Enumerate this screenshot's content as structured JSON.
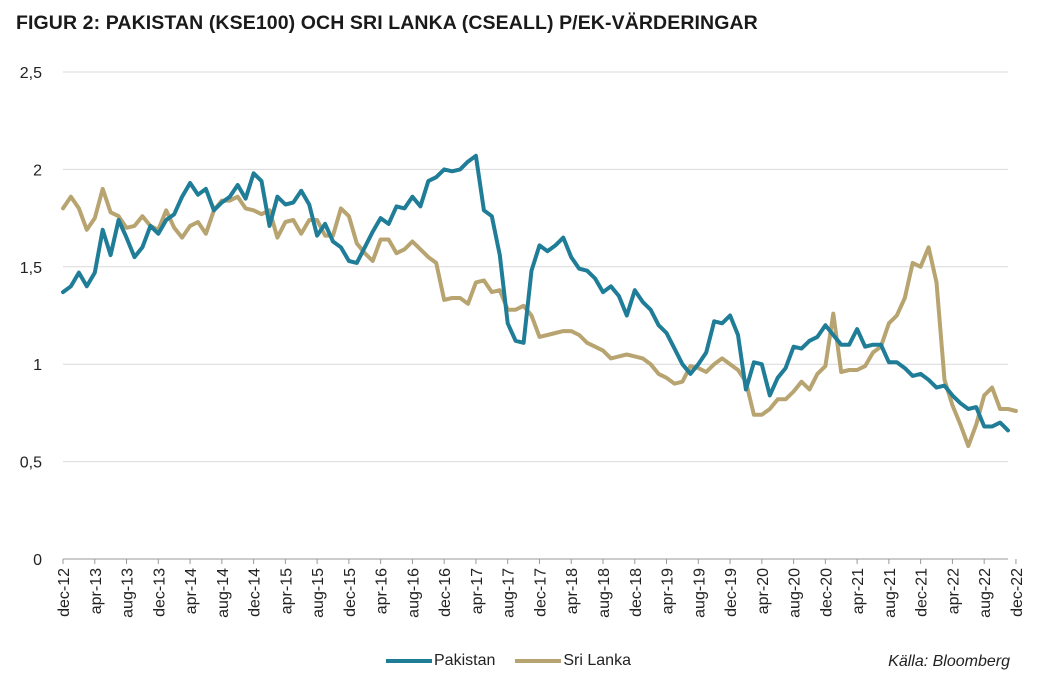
{
  "title": "FIGUR 2: PAKISTAN (KSE100) OCH SRI LANKA (CSEALL) P/EK-VÄRDERINGAR",
  "source": "Källa: Bloomberg",
  "colors": {
    "pakistan": "#1f7d98",
    "sri_lanka": "#b7a470",
    "grid": "#d9d9d9",
    "axis": "#999999"
  },
  "chart_data": {
    "type": "line",
    "title": "FIGUR 2: PAKISTAN (KSE100) OCH SRI LANKA (CSEALL) P/EK-VÄRDERINGAR",
    "xlabel": "",
    "ylabel": "",
    "ylim": [
      0,
      2.5
    ],
    "yticks": [
      "0",
      "0,5",
      "1",
      "1,5",
      "2",
      "2,5"
    ],
    "ytick_values": [
      0,
      0.5,
      1,
      1.5,
      2,
      2.5
    ],
    "grid": true,
    "legend": "bottom-center",
    "x_labels": [
      "dec-12",
      "apr-13",
      "aug-13",
      "dec-13",
      "apr-14",
      "aug-14",
      "dec-14",
      "apr-15",
      "aug-15",
      "dec-15",
      "apr-16",
      "aug-16",
      "dec-16",
      "apr-17",
      "aug-17",
      "dec-17",
      "apr-18",
      "aug-18",
      "dec-18",
      "apr-19",
      "aug-19",
      "dec-19",
      "apr-20",
      "aug-20",
      "dec-20",
      "apr-21",
      "aug-21",
      "dec-21",
      "apr-22",
      "aug-22",
      "dec-22"
    ],
    "x_start": "dec-12",
    "x_step": "1 month",
    "series": [
      {
        "name": "Pakistan",
        "values": [
          1.37,
          1.4,
          1.47,
          1.4,
          1.47,
          1.69,
          1.56,
          1.74,
          1.65,
          1.55,
          1.6,
          1.71,
          1.67,
          1.74,
          1.77,
          1.86,
          1.93,
          1.87,
          1.9,
          1.79,
          1.83,
          1.86,
          1.92,
          1.85,
          1.98,
          1.94,
          1.71,
          1.86,
          1.82,
          1.83,
          1.89,
          1.82,
          1.66,
          1.72,
          1.63,
          1.6,
          1.53,
          1.52,
          1.6,
          1.68,
          1.75,
          1.72,
          1.81,
          1.8,
          1.86,
          1.81,
          1.94,
          1.96,
          2.0,
          1.99,
          2.0,
          2.04,
          2.07,
          1.79,
          1.76,
          1.56,
          1.21,
          1.12,
          1.11,
          1.48,
          1.61,
          1.58,
          1.61,
          1.65,
          1.55,
          1.49,
          1.48,
          1.44,
          1.37,
          1.4,
          1.35,
          1.25,
          1.38,
          1.32,
          1.28,
          1.2,
          1.16,
          1.08,
          1.0,
          0.95,
          1.0,
          1.06,
          1.22,
          1.21,
          1.25,
          1.15,
          0.87,
          1.01,
          1.0,
          0.84,
          0.93,
          0.98,
          1.09,
          1.08,
          1.12,
          1.14,
          1.2,
          1.15,
          1.1,
          1.1,
          1.18,
          1.09,
          1.1,
          1.1,
          1.01,
          1.01,
          0.98,
          0.94,
          0.95,
          0.92,
          0.88,
          0.89,
          0.84,
          0.8,
          0.77,
          0.78,
          0.68,
          0.68,
          0.7,
          0.66
        ]
      },
      {
        "name": "Sri Lanka",
        "values": [
          1.8,
          1.86,
          1.8,
          1.69,
          1.75,
          1.9,
          1.78,
          1.76,
          1.7,
          1.71,
          1.76,
          1.71,
          1.69,
          1.79,
          1.7,
          1.65,
          1.71,
          1.73,
          1.67,
          1.79,
          1.84,
          1.84,
          1.86,
          1.8,
          1.79,
          1.77,
          1.79,
          1.65,
          1.73,
          1.74,
          1.67,
          1.74,
          1.74,
          1.66,
          1.66,
          1.8,
          1.76,
          1.62,
          1.57,
          1.53,
          1.64,
          1.64,
          1.57,
          1.59,
          1.63,
          1.59,
          1.55,
          1.52,
          1.33,
          1.34,
          1.34,
          1.31,
          1.42,
          1.43,
          1.37,
          1.38,
          1.28,
          1.28,
          1.3,
          1.25,
          1.14,
          1.15,
          1.16,
          1.17,
          1.17,
          1.15,
          1.11,
          1.09,
          1.07,
          1.03,
          1.04,
          1.05,
          1.04,
          1.03,
          1.0,
          0.95,
          0.93,
          0.9,
          0.91,
          0.99,
          0.98,
          0.96,
          1.0,
          1.03,
          1.0,
          0.97,
          0.91,
          0.74,
          0.74,
          0.77,
          0.82,
          0.82,
          0.86,
          0.91,
          0.87,
          0.95,
          0.99,
          1.26,
          0.96,
          0.97,
          0.97,
          0.99,
          1.06,
          1.09,
          1.21,
          1.25,
          1.34,
          1.52,
          1.5,
          1.6,
          1.42,
          0.92,
          0.79,
          0.69,
          0.58,
          0.69,
          0.84,
          0.88,
          0.77,
          0.77,
          0.76
        ]
      }
    ]
  }
}
